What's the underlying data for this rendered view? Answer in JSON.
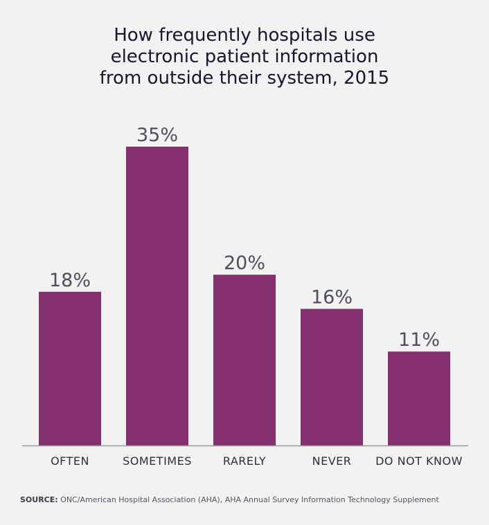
{
  "chart_data": {
    "type": "bar",
    "title_lines": [
      "How frequently hospitals use",
      "electronic patient information",
      "from outside their system, 2015"
    ],
    "categories": [
      "OFTEN",
      "SOMETIMES",
      "RARELY",
      "NEVER",
      "DO NOT KNOW"
    ],
    "values": [
      18,
      35,
      20,
      16,
      11
    ],
    "value_labels": [
      "18%",
      "35%",
      "20%",
      "16%",
      "11%"
    ],
    "unit": "%",
    "ylim": [
      0,
      35
    ],
    "grid": false,
    "legend": "none",
    "bar_color": "#84306f",
    "baseline_color": "#9a9a9a"
  },
  "source": {
    "label": "SOURCE:",
    "text": "ONC/American Hospital Association (AHA), AHA Annual Survey Information Technology Supplement"
  }
}
